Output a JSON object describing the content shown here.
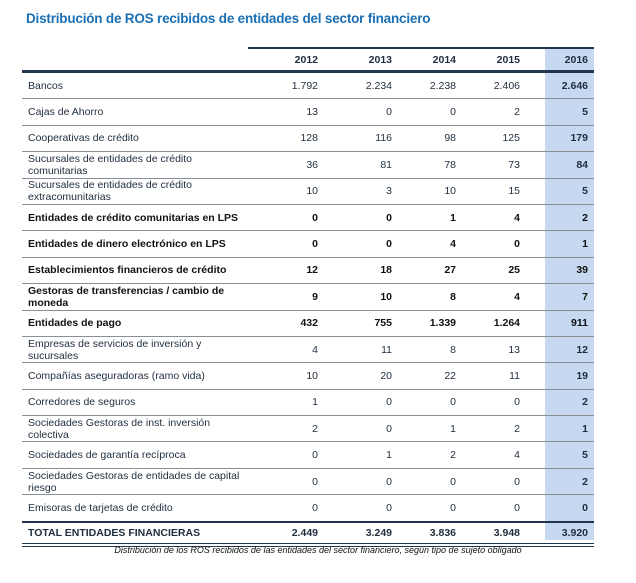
{
  "title": "Distribución de ROS recibidos de entidades del sector financiero",
  "columns": [
    "2012",
    "2013",
    "2014",
    "2015",
    "2016"
  ],
  "rows": [
    {
      "label": "Bancos",
      "values": [
        "1.792",
        "2.234",
        "2.238",
        "2.406",
        "2.646"
      ],
      "bold": false
    },
    {
      "label": "Cajas de Ahorro",
      "values": [
        "13",
        "0",
        "0",
        "2",
        "5"
      ],
      "bold": false
    },
    {
      "label": "Cooperativas de crédito",
      "values": [
        "128",
        "116",
        "98",
        "125",
        "179"
      ],
      "bold": false
    },
    {
      "label": "Sucursales de entidades de crédito comunitarias",
      "values": [
        "36",
        "81",
        "78",
        "73",
        "84"
      ],
      "bold": false
    },
    {
      "label": "Sucursales de entidades de crédito extracomunitarias",
      "values": [
        "10",
        "3",
        "10",
        "15",
        "5"
      ],
      "bold": false
    },
    {
      "label": "Entidades de crédito comunitarias en LPS",
      "values": [
        "0",
        "0",
        "1",
        "4",
        "2"
      ],
      "bold": true
    },
    {
      "label": "Entidades de dinero electrónico en LPS",
      "values": [
        "0",
        "0",
        "4",
        "0",
        "1"
      ],
      "bold": true
    },
    {
      "label": "Establecimientos financieros de crédito",
      "values": [
        "12",
        "18",
        "27",
        "25",
        "39"
      ],
      "bold": true
    },
    {
      "label": "Gestoras de transferencias / cambio de moneda",
      "values": [
        "9",
        "10",
        "8",
        "4",
        "7"
      ],
      "bold": true
    },
    {
      "label": "Entidades de pago",
      "values": [
        "432",
        "755",
        "1.339",
        "1.264",
        "911"
      ],
      "bold": true
    },
    {
      "label": "Empresas de servicios de inversión y sucursales",
      "values": [
        "4",
        "11",
        "8",
        "13",
        "12"
      ],
      "bold": false
    },
    {
      "label": "Compañías aseguradoras (ramo vida)",
      "values": [
        "10",
        "20",
        "22",
        "11",
        "19"
      ],
      "bold": false
    },
    {
      "label": "Corredores de seguros",
      "values": [
        "1",
        "0",
        "0",
        "0",
        "2"
      ],
      "bold": false
    },
    {
      "label": "Sociedades Gestoras de inst. inversión colectiva",
      "values": [
        "2",
        "0",
        "1",
        "2",
        "1"
      ],
      "bold": false
    },
    {
      "label": "Sociedades de garantía recíproca",
      "values": [
        "0",
        "1",
        "2",
        "4",
        "5"
      ],
      "bold": false
    },
    {
      "label": "Sociedades Gestoras de entidades de capital riesgo",
      "values": [
        "0",
        "0",
        "0",
        "0",
        "2"
      ],
      "bold": false
    },
    {
      "label": "Emisoras de tarjetas de crédito",
      "values": [
        "0",
        "0",
        "0",
        "0",
        "0"
      ],
      "bold": false
    }
  ],
  "total": {
    "label": "TOTAL ENTIDADES FINANCIERAS",
    "values": [
      "2.449",
      "3.249",
      "3.836",
      "3.948",
      "3.920"
    ]
  },
  "caption": "Distribución de los ROS recibidos de las entidades del sector financiero, según tipo de sujeto obligado"
}
